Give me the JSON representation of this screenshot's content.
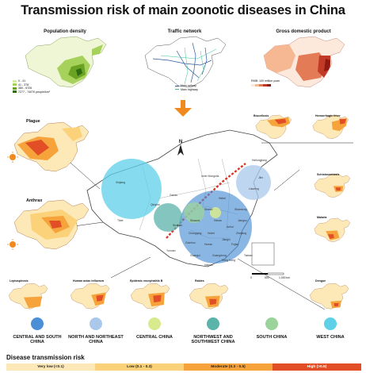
{
  "title": "Transmission risk of main zoonotic diseases in China",
  "top_panels": {
    "population": {
      "title": "Population density",
      "legend": [
        "0 - 41",
        "41 - 378",
        "380 - 6726",
        "7277 - 74070 people/km²"
      ],
      "colors": [
        "#d7ec9c",
        "#a6d15a",
        "#6aa323",
        "#2f6b10"
      ]
    },
    "traffic": {
      "title": "Traffic network",
      "legend": [
        "Main railway",
        "Main highway"
      ],
      "colors": [
        "#2a5a9c",
        "#3cbf9a"
      ]
    },
    "gdp": {
      "title": "Gross domestic product",
      "legend_title": "RMB: 100 million yuan",
      "colors": [
        "#fde8dc",
        "#f5b892",
        "#e37b57",
        "#c13a26",
        "#8e1a12"
      ]
    }
  },
  "diseases": {
    "plague": "Plague",
    "anthrax": "Anthrax",
    "brucellosis": "Brucellosis",
    "hemorrhagic": "Hemorrhagic fever",
    "schisto": "Schistosomiasis",
    "malaria": "Malaria",
    "lepto": "Leptospirosis",
    "avian": "Human avian influenza",
    "je": "Epidemic encephalitis B",
    "rabies": "Rabies",
    "dengue": "Dengue"
  },
  "map_labels": {
    "xinjiang": "Xinjiang",
    "qinghai": "Qinghai",
    "tibet": "Tibet",
    "sichuan": "Sichuan",
    "heilongjiang": "Heilongjiang",
    "jilin": "Jilin",
    "liaoning": "Liaoning",
    "inner_mongolia": "Inner Mongolia",
    "hebei": "Hebei",
    "shandong": "Shandong",
    "henan": "Henan",
    "hubei": "Hubei",
    "hunan": "Hunan",
    "guizhou": "Guizhou",
    "yunnan": "Yunnan",
    "guangxi": "Guangxi",
    "guangdong": "Guangdong",
    "fujian": "Fujian",
    "jiangxi": "Jiangxi",
    "zhejiang": "Zhejiang",
    "anhui": "Anhui",
    "jiangsu": "Jiangsu",
    "hainan": "Hainan",
    "taiwan": "Taiwan",
    "shaanxi": "Shaanxi",
    "gansu": "Gansu",
    "shanxi": "Shanxi",
    "chongqing": "Chongqing",
    "hong_kong": "Hong Kong"
  },
  "compass": "N",
  "scale": [
    "0",
    "500",
    "1,000 km"
  ],
  "region_legend": [
    {
      "label": "CENTRAL AND SOUTH CHINA",
      "color": "#4b8fd6"
    },
    {
      "label": "NORTH AND NORTHEAST CHINA",
      "color": "#a9c8ec"
    },
    {
      "label": "CENTRAL CHINA",
      "color": "#d8ea8e"
    },
    {
      "label": "NORTHWEST AND SOUTHWEST CHINA",
      "color": "#5bb3a9"
    },
    {
      "label": "SOUTH CHINA",
      "color": "#9bd39a"
    },
    {
      "label": "WEST CHINA",
      "color": "#5ed0e8"
    }
  ],
  "risk_legend": {
    "title": "Disease transmission risk",
    "items": [
      {
        "label": "Very low (<0.1)",
        "color": "#fde9b8"
      },
      {
        "label": "Low (0.1 - 0.3)",
        "color": "#fbd27a"
      },
      {
        "label": "Moderate (0.3 - 0.5)",
        "color": "#f5a33a"
      },
      {
        "label": "High (>0.5)",
        "color": "#e24e25"
      }
    ]
  }
}
